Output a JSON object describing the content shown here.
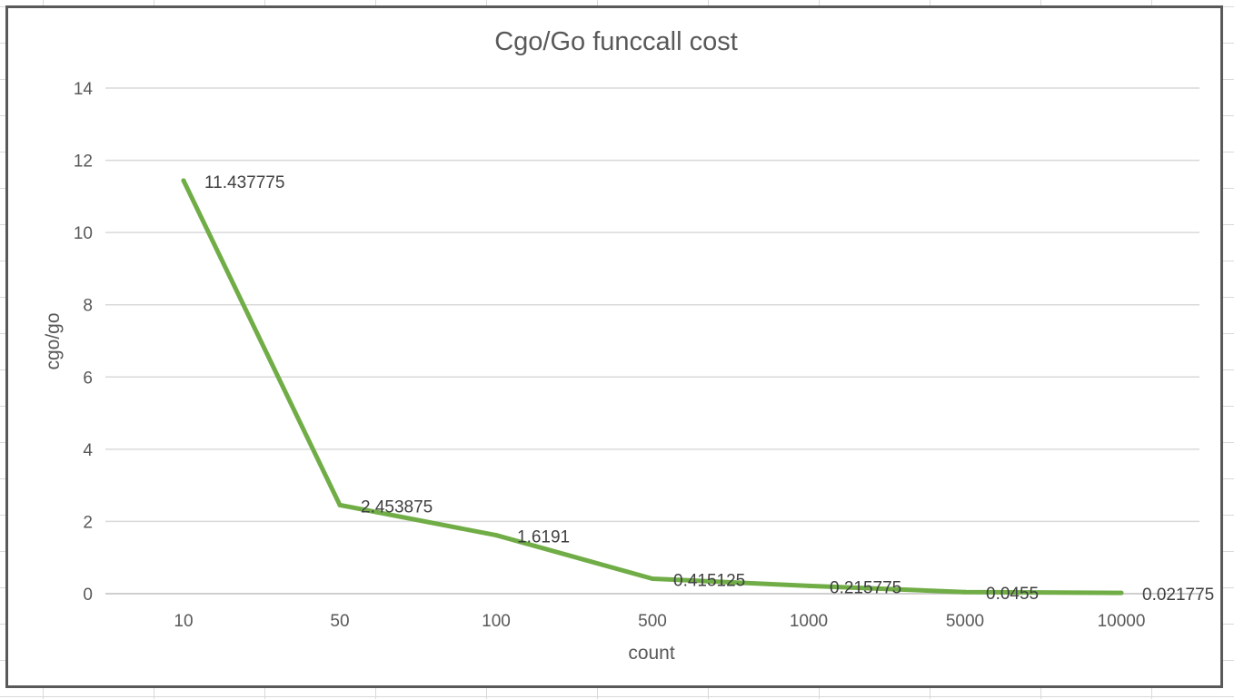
{
  "chart_data": {
    "type": "line",
    "title": "Cgo/Go funccall cost",
    "xlabel": "count",
    "ylabel": "cgo/go",
    "categories": [
      "10",
      "50",
      "100",
      "500",
      "1000",
      "5000",
      "10000"
    ],
    "series": [
      {
        "values": [
          11.437775,
          2.453875,
          1.6191,
          0.415125,
          0.215775,
          0.0455,
          0.021775
        ],
        "data_labels": [
          "11.437775",
          "2.453875",
          "1.6191",
          "0.415125",
          "0.215775",
          "0.0455",
          "0.021775"
        ],
        "color": "#70ad47"
      }
    ],
    "ylim": [
      0,
      14
    ],
    "yticks": [
      "0",
      "2",
      "4",
      "6",
      "8",
      "10",
      "12",
      "14"
    ],
    "grid": true,
    "legend": "none"
  }
}
